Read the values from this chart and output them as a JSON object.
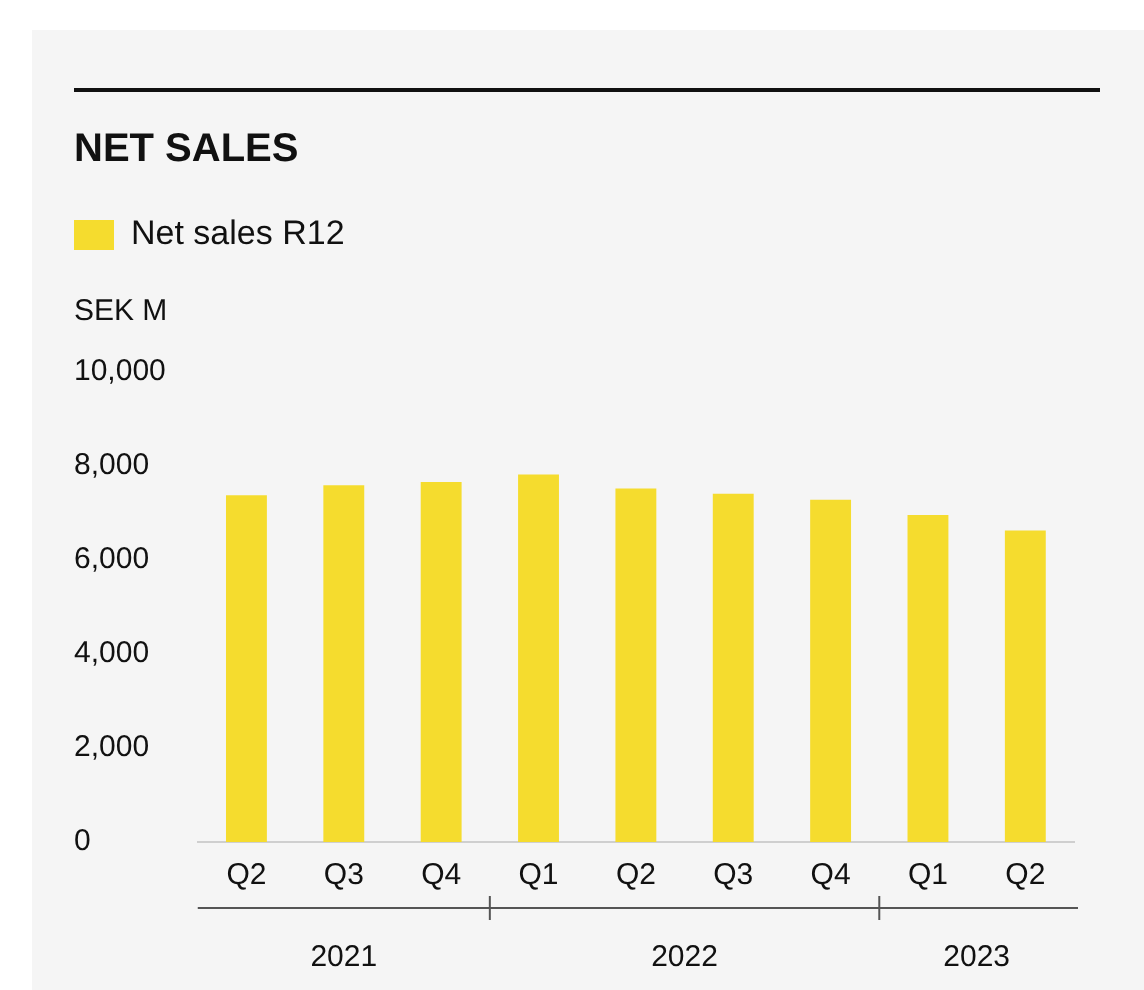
{
  "chart_data": {
    "type": "bar",
    "title": "NET SALES",
    "ylabel": "SEK M",
    "categories": [
      "Q2",
      "Q3",
      "Q4",
      "Q1",
      "Q2",
      "Q3",
      "Q4",
      "Q1",
      "Q2"
    ],
    "series": [
      {
        "name": "Net sales R12",
        "color": "#f5dc2e",
        "values": [
          7380,
          7590,
          7660,
          7820,
          7520,
          7410,
          7280,
          6960,
          6630
        ]
      }
    ],
    "ylim": [
      0,
      10000
    ],
    "yticks": [
      0,
      {
        "value": 2000,
        "label": "2,000"
      },
      {
        "value": 4000,
        "label": "4,000"
      },
      {
        "value": 6000,
        "label": "6,000"
      },
      {
        "value": 8000,
        "label": "8,000"
      },
      {
        "value": 10000,
        "label": "10,000"
      }
    ],
    "annotations": [
      "2021",
      "2022",
      "2023"
    ],
    "grid": false,
    "legend": "top left"
  }
}
